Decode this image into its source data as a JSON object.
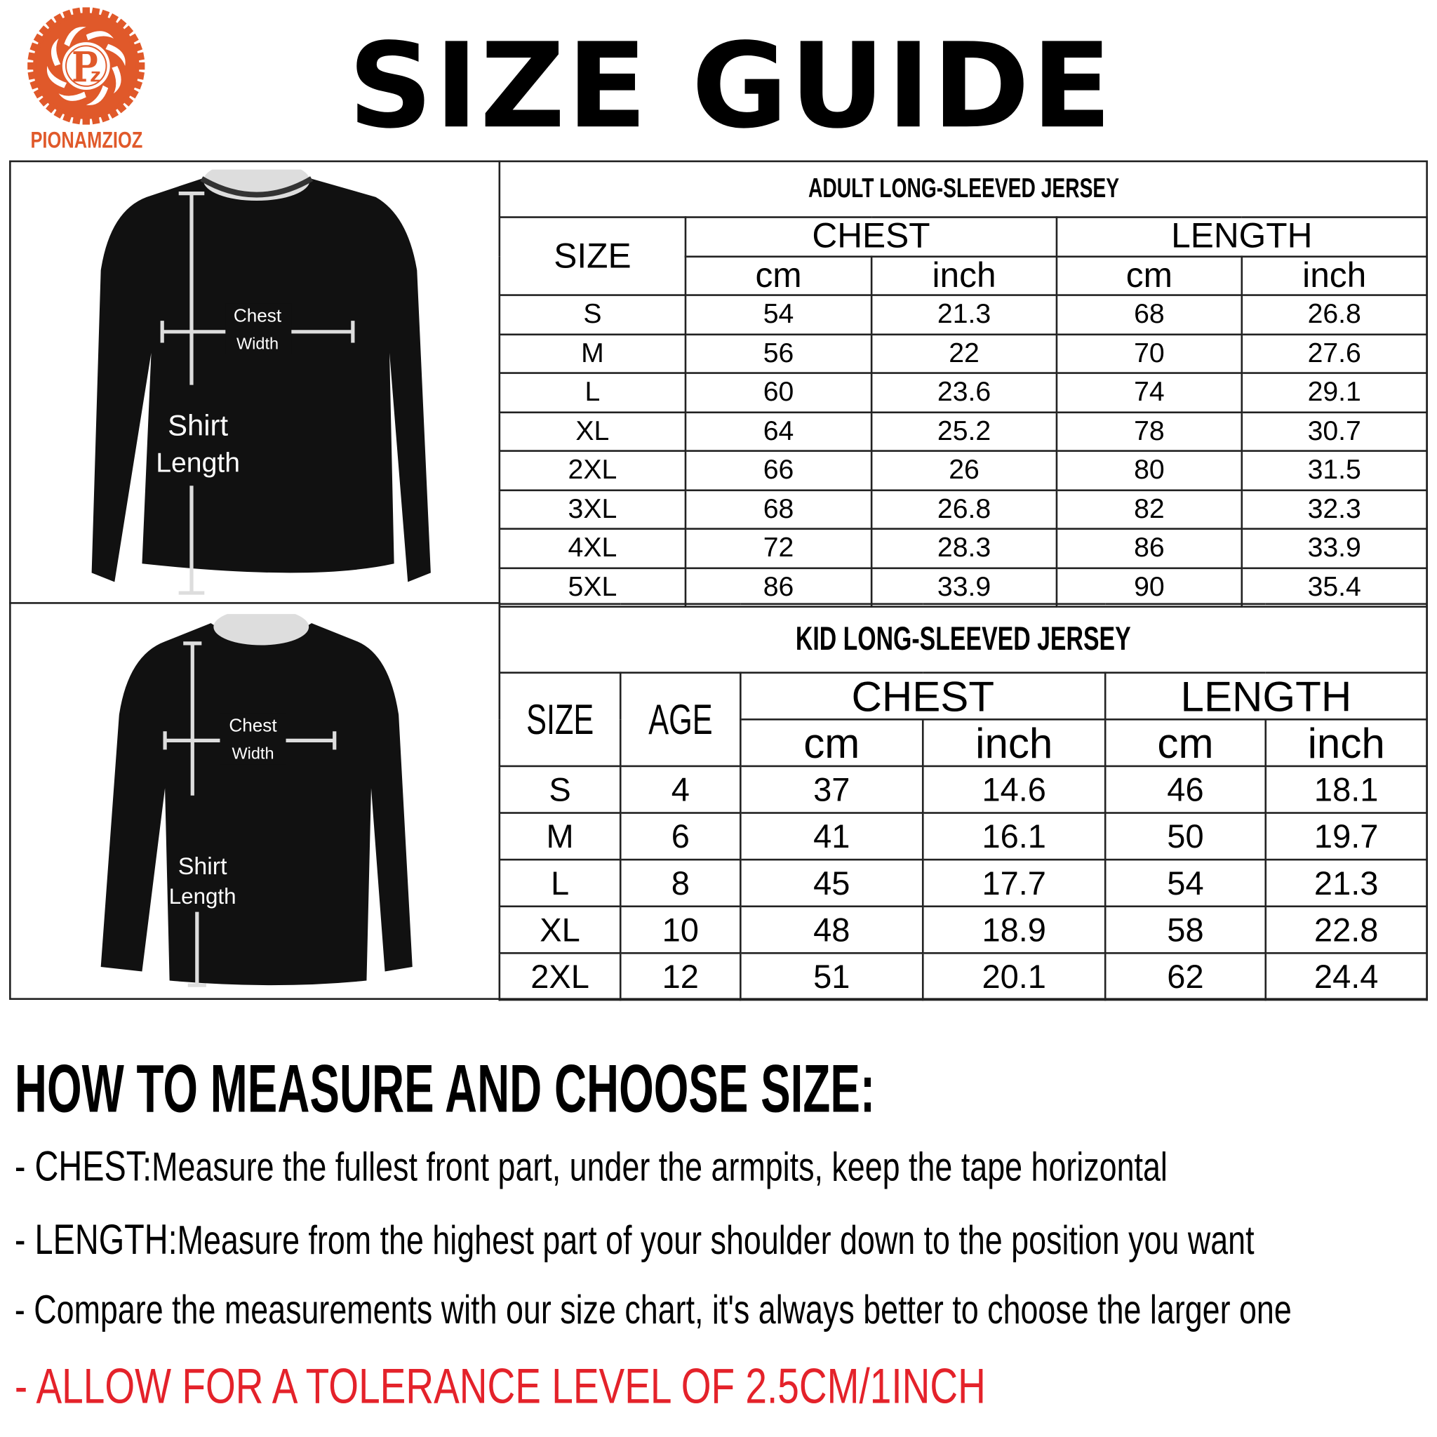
{
  "logo": {
    "text": "PIONAMZIOZ",
    "monogram": "Pz",
    "color": "#e0592a"
  },
  "title": "SIZE GUIDE",
  "diagram_labels": {
    "chest": "Chest",
    "width": "Width",
    "shirt": "Shirt",
    "length": "Length"
  },
  "adult": {
    "title": "ADULT LONG-SLEEVED JERSEY",
    "headers": {
      "size": "SIZE",
      "chest": "CHEST",
      "length": "LENGTH",
      "cm": "cm",
      "inch": "inch"
    },
    "rows": [
      [
        "S",
        "54",
        "21.3",
        "68",
        "26.8"
      ],
      [
        "M",
        "56",
        "22",
        "70",
        "27.6"
      ],
      [
        "L",
        "60",
        "23.6",
        "74",
        "29.1"
      ],
      [
        "XL",
        "64",
        "25.2",
        "78",
        "30.7"
      ],
      [
        "2XL",
        "66",
        "26",
        "80",
        "31.5"
      ],
      [
        "3XL",
        "68",
        "26.8",
        "82",
        "32.3"
      ],
      [
        "4XL",
        "72",
        "28.3",
        "86",
        "33.9"
      ],
      [
        "5XL",
        "86",
        "33.9",
        "90",
        "35.4"
      ]
    ]
  },
  "kid": {
    "title": "KID LONG-SLEEVED JERSEY",
    "headers": {
      "size": "SIZE",
      "age": "AGE",
      "chest": "CHEST",
      "length": "LENGTH",
      "cm": "cm",
      "inch": "inch"
    },
    "rows": [
      [
        "S",
        "4",
        "37",
        "14.6",
        "46",
        "18.1"
      ],
      [
        "M",
        "6",
        "41",
        "16.1",
        "50",
        "19.7"
      ],
      [
        "L",
        "8",
        "45",
        "17.7",
        "54",
        "21.3"
      ],
      [
        "XL",
        "10",
        "48",
        "18.9",
        "58",
        "22.8"
      ],
      [
        "2XL",
        "12",
        "51",
        "20.1",
        "62",
        "24.4"
      ]
    ]
  },
  "howto": {
    "heading": "HOW TO MEASURE AND CHOOSE SIZE:",
    "chest_label": "- CHEST:",
    "chest_text": "Measure the fullest front part, under the armpits, keep the tape horizontal",
    "length_label": "- LENGTH:",
    "length_text": "Measure from the highest part of your shoulder down to the position you want",
    "compare_text": "- Compare the measurements with our size chart, it's always better to choose the larger one",
    "tolerance_text": "- ALLOW FOR A TOLERANCE LEVEL OF 2.5CM/1INCH",
    "tolerance_color": "#e4222a"
  }
}
